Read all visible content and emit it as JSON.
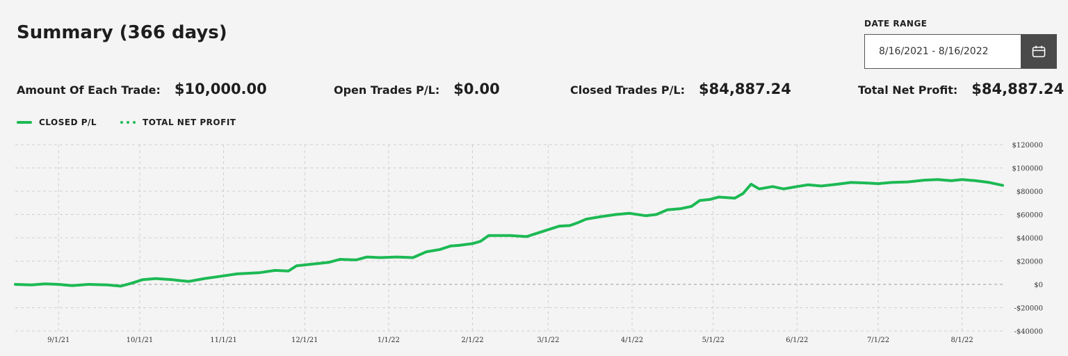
{
  "summary": {
    "title": "Summary (366 days)"
  },
  "date_range": {
    "label": "DATE RANGE",
    "value": "8/16/2021 - 8/16/2022",
    "button_icon": "calendar-icon"
  },
  "stats": {
    "amount_label": "Amount Of Each Trade:",
    "amount_value": "$10,000.00",
    "open_label": "Open Trades P/L:",
    "open_value": "$0.00",
    "closed_label": "Closed Trades P/L:",
    "closed_value": "$84,887.24",
    "net_label": "Total Net Profit:",
    "net_value": "$84,887.24"
  },
  "legend": {
    "closed": "CLOSED P/L",
    "total": "TOTAL NET PROFIT"
  },
  "colors": {
    "series": "#1db954",
    "grid": "#cfcfcf",
    "zero_line": "#9a9a9a"
  },
  "chart_data": {
    "type": "line",
    "x_range": [
      "2021-08-16",
      "2022-08-16"
    ],
    "ylim": [
      -40000,
      120000
    ],
    "y_ticks": [
      {
        "value": 120000,
        "label": "$120000"
      },
      {
        "value": 100000,
        "label": "$100000"
      },
      {
        "value": 80000,
        "label": "$80000"
      },
      {
        "value": 60000,
        "label": "$60000"
      },
      {
        "value": 40000,
        "label": "$40000"
      },
      {
        "value": 20000,
        "label": "$20000"
      },
      {
        "value": 0,
        "label": "$0"
      },
      {
        "value": -20000,
        "label": "-$20000"
      },
      {
        "value": -40000,
        "label": "-$40000"
      }
    ],
    "x_ticks": [
      {
        "date": "2021-09-01",
        "label": "9/1/21"
      },
      {
        "date": "2021-10-01",
        "label": "10/1/21"
      },
      {
        "date": "2021-11-01",
        "label": "11/1/21"
      },
      {
        "date": "2021-12-01",
        "label": "12/1/21"
      },
      {
        "date": "2022-01-01",
        "label": "1/1/22"
      },
      {
        "date": "2022-02-01",
        "label": "2/1/22"
      },
      {
        "date": "2022-03-01",
        "label": "3/1/22"
      },
      {
        "date": "2022-04-01",
        "label": "4/1/22"
      },
      {
        "date": "2022-05-01",
        "label": "5/1/22"
      },
      {
        "date": "2022-06-01",
        "label": "6/1/22"
      },
      {
        "date": "2022-07-01",
        "label": "7/1/22"
      },
      {
        "date": "2022-08-01",
        "label": "8/1/22"
      }
    ],
    "grid": true,
    "series": [
      {
        "name": "CLOSED P/L",
        "style": "solid",
        "points": [
          [
            "2021-08-16",
            0
          ],
          [
            "2021-08-22",
            -500
          ],
          [
            "2021-08-27",
            500
          ],
          [
            "2021-09-01",
            0
          ],
          [
            "2021-09-06",
            -1000
          ],
          [
            "2021-09-12",
            0
          ],
          [
            "2021-09-19",
            -500
          ],
          [
            "2021-09-24",
            -1500
          ],
          [
            "2021-09-28",
            1000
          ],
          [
            "2021-10-02",
            4000
          ],
          [
            "2021-10-07",
            5000
          ],
          [
            "2021-10-13",
            4000
          ],
          [
            "2021-10-19",
            2500
          ],
          [
            "2021-10-25",
            5000
          ],
          [
            "2021-10-31",
            7000
          ],
          [
            "2021-11-06",
            9000
          ],
          [
            "2021-11-14",
            10000
          ],
          [
            "2021-11-20",
            12000
          ],
          [
            "2021-11-25",
            11500
          ],
          [
            "2021-11-28",
            16000
          ],
          [
            "2021-12-04",
            17500
          ],
          [
            "2021-12-10",
            19000
          ],
          [
            "2021-12-14",
            21500
          ],
          [
            "2021-12-20",
            21000
          ],
          [
            "2021-12-24",
            23500
          ],
          [
            "2021-12-29",
            23000
          ],
          [
            "2022-01-04",
            23500
          ],
          [
            "2022-01-10",
            23000
          ],
          [
            "2022-01-15",
            28000
          ],
          [
            "2022-01-20",
            30000
          ],
          [
            "2022-01-24",
            33000
          ],
          [
            "2022-01-27",
            33500
          ],
          [
            "2022-02-01",
            35000
          ],
          [
            "2022-02-04",
            37000
          ],
          [
            "2022-02-07",
            42000
          ],
          [
            "2022-02-15",
            42000
          ],
          [
            "2022-02-21",
            41000
          ],
          [
            "2022-02-25",
            44000
          ],
          [
            "2022-03-01",
            47000
          ],
          [
            "2022-03-05",
            50000
          ],
          [
            "2022-03-09",
            50500
          ],
          [
            "2022-03-12",
            53000
          ],
          [
            "2022-03-15",
            56000
          ],
          [
            "2022-03-20",
            58000
          ],
          [
            "2022-03-26",
            60000
          ],
          [
            "2022-03-31",
            61000
          ],
          [
            "2022-04-06",
            59000
          ],
          [
            "2022-04-10",
            60000
          ],
          [
            "2022-04-14",
            64000
          ],
          [
            "2022-04-19",
            65000
          ],
          [
            "2022-04-23",
            67000
          ],
          [
            "2022-04-26",
            72000
          ],
          [
            "2022-04-30",
            73000
          ],
          [
            "2022-05-03",
            75000
          ],
          [
            "2022-05-09",
            74000
          ],
          [
            "2022-05-12",
            78000
          ],
          [
            "2022-05-15",
            86000
          ],
          [
            "2022-05-18",
            82000
          ],
          [
            "2022-05-23",
            84000
          ],
          [
            "2022-05-27",
            82000
          ],
          [
            "2022-06-01",
            84000
          ],
          [
            "2022-06-05",
            85500
          ],
          [
            "2022-06-10",
            84500
          ],
          [
            "2022-06-16",
            86000
          ],
          [
            "2022-06-21",
            87500
          ],
          [
            "2022-06-27",
            87000
          ],
          [
            "2022-07-01",
            86500
          ],
          [
            "2022-07-06",
            87500
          ],
          [
            "2022-07-12",
            88000
          ],
          [
            "2022-07-18",
            89500
          ],
          [
            "2022-07-23",
            90000
          ],
          [
            "2022-07-28",
            89000
          ],
          [
            "2022-08-01",
            90000
          ],
          [
            "2022-08-06",
            89000
          ],
          [
            "2022-08-11",
            87500
          ],
          [
            "2022-08-16",
            85000
          ]
        ]
      }
    ]
  }
}
